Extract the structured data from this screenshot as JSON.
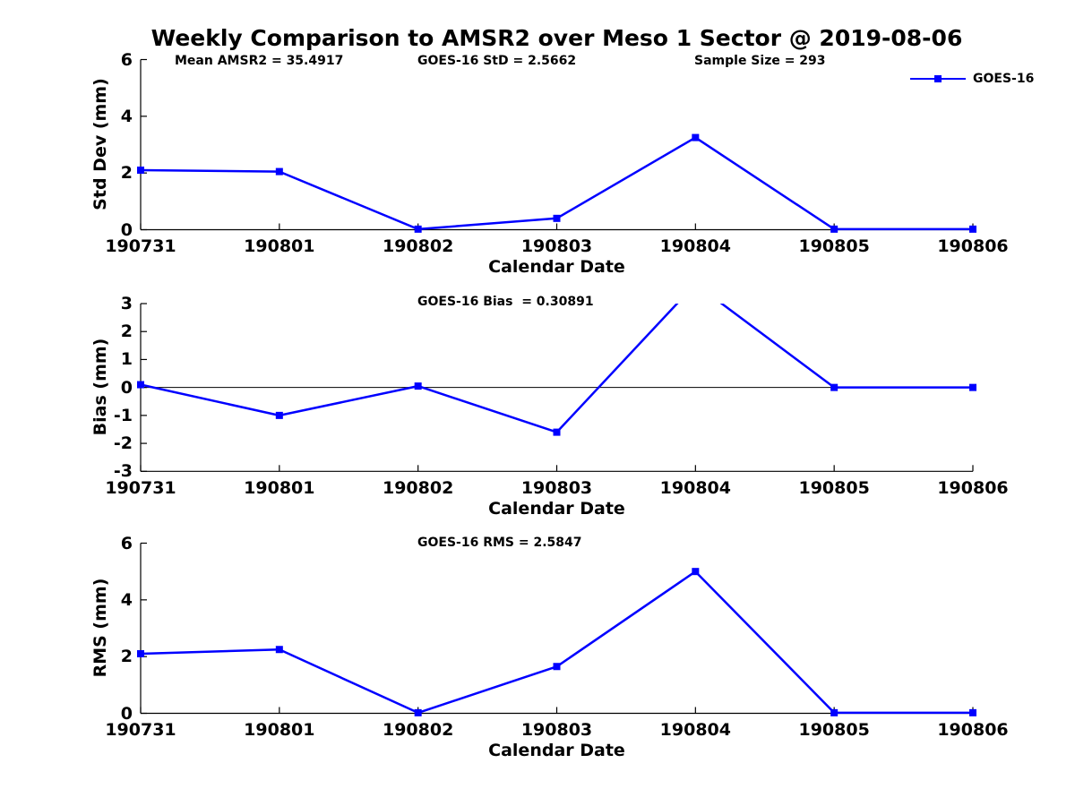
{
  "title": "Weekly Comparison to AMSR2 over Meso 1 Sector @ 2019-08-06",
  "colors": {
    "series": "#0000FF",
    "axis": "#000000",
    "text": "#000000",
    "background": "#FFFFFF"
  },
  "stats": {
    "mean_amsr2": 35.4917,
    "goes16_std": 2.5662,
    "sample_size": 293,
    "goes16_bias": 0.30891,
    "goes16_rms": 2.5847
  },
  "chart_data": [
    {
      "id": "std-dev",
      "type": "line",
      "categories": [
        "190731",
        "190801",
        "190802",
        "190803",
        "190804",
        "190805",
        "190806"
      ],
      "series": [
        {
          "name": "GOES-16",
          "marker": "square",
          "values": [
            2.1,
            2.05,
            0.02,
            0.4,
            3.25,
            0.02,
            0.02
          ]
        }
      ],
      "xlabel": "Calendar Date",
      "ylabel": "Std Dev (mm)",
      "ylim": [
        0,
        6
      ],
      "yticks": [
        0,
        2,
        4,
        6
      ],
      "zero_line": false,
      "grid": false,
      "annotations": [
        "Mean AMSR2 = 35.4917",
        "GOES-16 StD = 2.5662",
        "Sample Size = 293"
      ],
      "legend": {
        "label": "GOES-16",
        "position": "top-right"
      }
    },
    {
      "id": "bias",
      "type": "line",
      "categories": [
        "190731",
        "190801",
        "190802",
        "190803",
        "190804",
        "190805",
        "190806"
      ],
      "series": [
        {
          "name": "GOES-16",
          "marker": "square",
          "values": [
            0.1,
            -1.0,
            0.05,
            -1.6,
            3.7,
            0.0,
            0.0
          ]
        }
      ],
      "note": "peak at 190804 exceeds axis range and is clipped at y = 3",
      "xlabel": "Calendar Date",
      "ylabel": "Bias (mm)",
      "ylim": [
        -3,
        3
      ],
      "yticks": [
        -3,
        -2,
        -1,
        0,
        1,
        2,
        3
      ],
      "zero_line": true,
      "grid": false,
      "annotations": [
        "GOES-16 Bias  = 0.30891"
      ]
    },
    {
      "id": "rms",
      "type": "line",
      "categories": [
        "190731",
        "190801",
        "190802",
        "190803",
        "190804",
        "190805",
        "190806"
      ],
      "series": [
        {
          "name": "GOES-16",
          "marker": "square",
          "values": [
            2.1,
            2.25,
            0.02,
            1.65,
            5.0,
            0.02,
            0.02
          ]
        }
      ],
      "xlabel": "Calendar Date",
      "ylabel": "RMS (mm)",
      "ylim": [
        0,
        6
      ],
      "yticks": [
        0,
        2,
        4,
        6
      ],
      "zero_line": false,
      "grid": false,
      "annotations": [
        "GOES-16 RMS = 2.5847"
      ]
    }
  ]
}
